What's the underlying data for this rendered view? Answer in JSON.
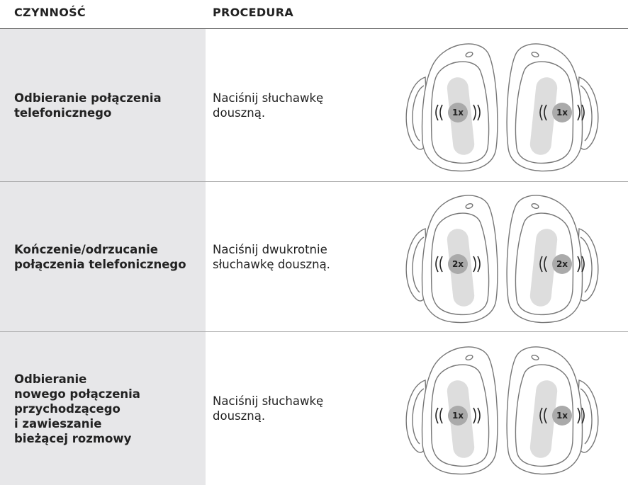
{
  "table": {
    "header": [
      "CZYNNOŚĆ",
      "PROCEDURA"
    ],
    "rows": [
      {
        "action": [
          "Odbieranie połączenia",
          "telefonicznego"
        ],
        "procedure": [
          "Naciśnij słuchawkę",
          "douszną."
        ],
        "taps": [
          "1x",
          "1x"
        ]
      },
      {
        "action": [
          "Kończenie/odrzucanie",
          "połączenia telefonicznego"
        ],
        "procedure": [
          "Naciśnij dwukrotnie",
          "słuchawkę douszną."
        ],
        "taps": [
          "2x",
          "2x"
        ]
      },
      {
        "action": [
          "Odbieranie",
          "nowego połączenia",
          "przychodzącego",
          "i zawieszanie",
          "bieżącej rozmowy"
        ],
        "procedure": [
          "Naciśnij słuchawkę",
          "douszną."
        ],
        "taps": [
          "1x",
          "1x"
        ]
      }
    ]
  }
}
